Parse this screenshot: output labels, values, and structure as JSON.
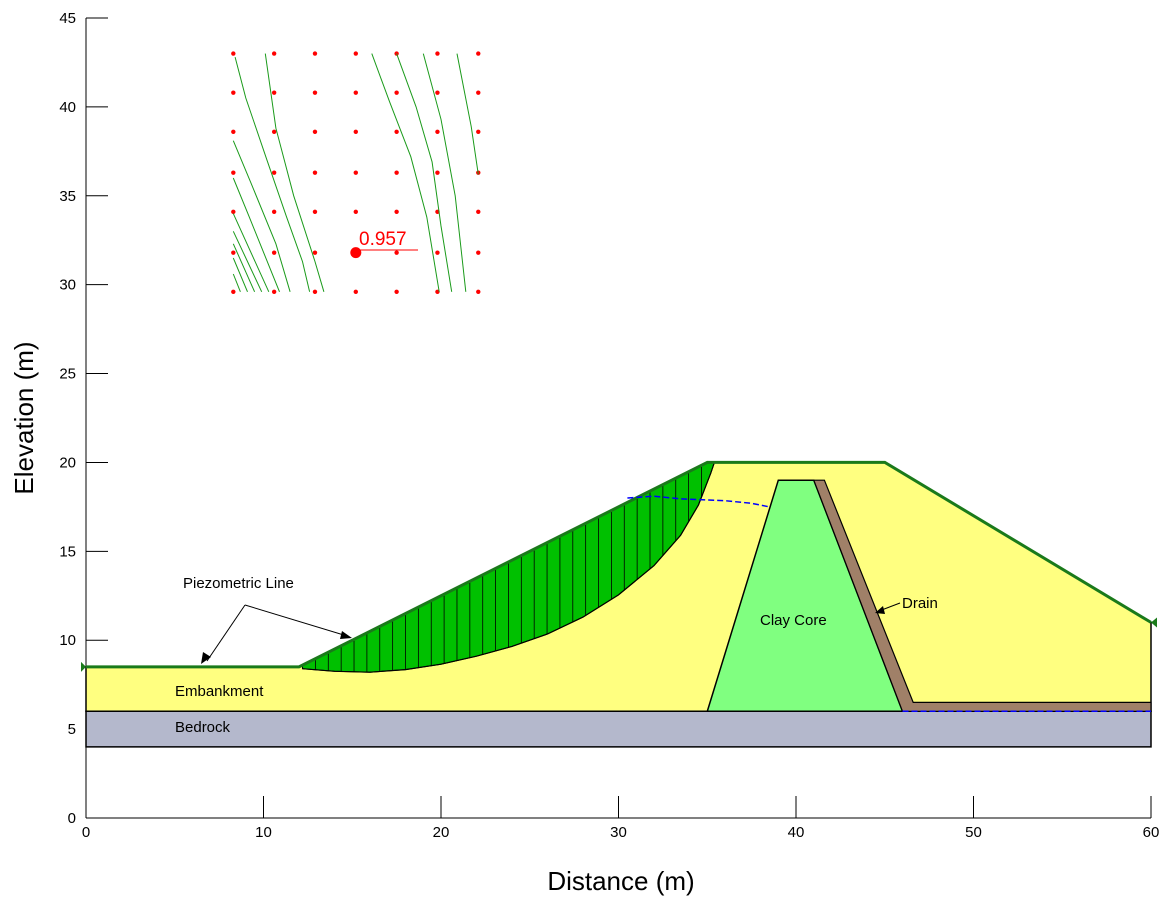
{
  "axes": {
    "xlabel": "Distance (m)",
    "ylabel": "Elevation (m)",
    "xlim": [
      0,
      60
    ],
    "ylim": [
      0,
      45
    ],
    "xticks": [
      0,
      10,
      20,
      30,
      40,
      50,
      60
    ],
    "yticks": [
      0,
      5,
      10,
      15,
      20,
      25,
      30,
      35,
      40,
      45
    ]
  },
  "labels": {
    "piezometric": "Piezometric Line",
    "embankment": "Embankment",
    "bedrock": "Bedrock",
    "clay_core": "Clay Core",
    "drain": "Drain",
    "factor_of_safety": "0.957"
  },
  "colors": {
    "embankment": "#ffff80",
    "bedrock": "#b4b8cc",
    "clay_core": "#80ff80",
    "drain": "#a08068",
    "slip_mass": "#00c000",
    "surface_line": "#1a7a1a",
    "water": "#0000ff",
    "grid_points": "#ff0000",
    "contours": "#1a9a1a"
  },
  "chart_data": {
    "type": "slope-stability-section",
    "regions": {
      "bedrock": [
        [
          0,
          4
        ],
        [
          60,
          4
        ],
        [
          60,
          6
        ],
        [
          0,
          6
        ]
      ],
      "embankment": [
        [
          0,
          6
        ],
        [
          60,
          6
        ],
        [
          60,
          11
        ],
        [
          45,
          20
        ],
        [
          35,
          20
        ],
        [
          12,
          8.5
        ],
        [
          0,
          8.5
        ]
      ],
      "clay_core": [
        [
          35,
          6
        ],
        [
          46,
          6
        ],
        [
          41,
          19
        ],
        [
          39,
          19
        ]
      ],
      "drain": [
        [
          41,
          19
        ],
        [
          41.6,
          19
        ],
        [
          46.6,
          6.5
        ],
        [
          60,
          6.5
        ],
        [
          60,
          6
        ],
        [
          46,
          6
        ]
      ]
    },
    "ground_surface": [
      [
        0,
        8.5
      ],
      [
        12,
        8.5
      ],
      [
        35,
        20
      ],
      [
        45,
        20
      ],
      [
        60,
        11
      ]
    ],
    "slip_surface": [
      [
        12.2,
        8.4
      ],
      [
        14,
        8.25
      ],
      [
        16,
        8.2
      ],
      [
        18,
        8.35
      ],
      [
        20,
        8.65
      ],
      [
        22,
        9.1
      ],
      [
        24,
        9.65
      ],
      [
        26,
        10.35
      ],
      [
        28,
        11.3
      ],
      [
        30,
        12.55
      ],
      [
        32,
        14.2
      ],
      [
        33.5,
        15.9
      ],
      [
        34.5,
        17.6
      ],
      [
        35.2,
        19.4
      ],
      [
        35.4,
        20
      ]
    ],
    "water_table": [
      [
        30.5,
        18
      ],
      [
        32,
        18.1
      ],
      [
        33.5,
        17.95
      ],
      [
        36,
        17.85
      ],
      [
        37.5,
        17.7
      ],
      [
        38.5,
        17.5
      ]
    ],
    "water_table_downstream": [
      [
        46,
        6
      ],
      [
        60,
        6
      ]
    ],
    "critical_center": [
      15.2,
      31.8
    ],
    "grid_x": [
      8.3,
      10.6,
      12.9,
      15.2,
      17.5,
      19.8,
      22.1
    ],
    "grid_y": [
      29.6,
      31.8,
      34.1,
      36.3,
      38.6,
      40.8,
      43.0
    ],
    "contours": [
      [
        [
          8.3,
          30.6
        ],
        [
          8.7,
          29.6
        ]
      ],
      [
        [
          8.3,
          31.5
        ],
        [
          9.1,
          29.6
        ]
      ],
      [
        [
          8.3,
          32.3
        ],
        [
          9.5,
          29.6
        ]
      ],
      [
        [
          8.3,
          33.0
        ],
        [
          9.9,
          29.6
        ]
      ],
      [
        [
          8.3,
          34.0
        ],
        [
          10.3,
          29.6
        ]
      ],
      [
        [
          8.3,
          36.0
        ],
        [
          9.2,
          33.8
        ],
        [
          10.9,
          29.6
        ]
      ],
      [
        [
          8.3,
          38.1
        ],
        [
          9.3,
          35.7
        ],
        [
          10.7,
          32.3
        ],
        [
          11.5,
          29.6
        ]
      ],
      [
        [
          8.4,
          42.8
        ],
        [
          9.0,
          40.5
        ],
        [
          10.2,
          37.0
        ],
        [
          11.3,
          33.8
        ],
        [
          12.2,
          31.3
        ],
        [
          12.6,
          29.6
        ]
      ],
      [
        [
          10.1,
          43.0
        ],
        [
          10.7,
          38.8
        ],
        [
          11.7,
          35.0
        ],
        [
          12.9,
          31.3
        ],
        [
          13.4,
          29.6
        ]
      ],
      [
        [
          16.1,
          43.0
        ],
        [
          17.1,
          40.3
        ],
        [
          18.3,
          37.2
        ],
        [
          19.2,
          33.8
        ],
        [
          19.9,
          29.6
        ]
      ],
      [
        [
          17.5,
          43.0
        ],
        [
          18.6,
          40.0
        ],
        [
          19.5,
          36.9
        ],
        [
          20.0,
          33.3
        ],
        [
          20.6,
          29.6
        ]
      ],
      [
        [
          19.0,
          43.0
        ],
        [
          20.0,
          39.3
        ],
        [
          20.8,
          35.0
        ],
        [
          21.4,
          29.6
        ]
      ],
      [
        [
          20.9,
          43.0
        ],
        [
          21.7,
          38.9
        ],
        [
          22.1,
          36.2
        ]
      ]
    ],
    "slice_count": 32
  }
}
